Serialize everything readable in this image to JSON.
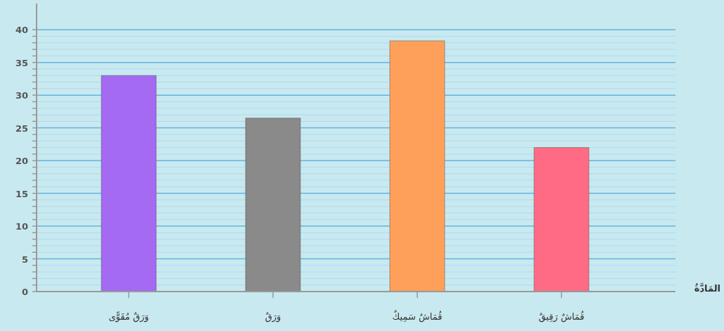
{
  "chart_data": {
    "type": "bar",
    "xlabel": "المَادَّةُ",
    "categories": [
      "وَرَقٌ مُقَوًّى",
      "وَرَقٌ",
      "قُمَاشٌ سَمِيكٌ",
      "قُمَاشٌ رَقِيقٌ"
    ],
    "values": [
      33,
      26.5,
      38.3,
      22
    ],
    "colors": [
      "#a46af2",
      "#8a8a8a",
      "#ffa05a",
      "#ff6b84"
    ],
    "ylim": [
      0,
      44
    ],
    "yticks": [
      0,
      {
        "value": 1,
        "label": null
      },
      {
        "value": 2,
        "label": null
      },
      {
        "value": 3,
        "label": null
      },
      {
        "value": 4,
        "label": null
      },
      5,
      {
        "value": 6,
        "label": null
      },
      {
        "value": 7,
        "label": null
      },
      {
        "value": 8,
        "label": null
      },
      {
        "value": 9,
        "label": null
      },
      10,
      {
        "value": 11,
        "label": null
      },
      {
        "value": 12,
        "label": null
      },
      {
        "value": 13,
        "label": null
      },
      {
        "value": 14,
        "label": null
      },
      15,
      {
        "value": 16,
        "label": null
      },
      {
        "value": 17,
        "label": null
      },
      {
        "value": 18,
        "label": null
      },
      {
        "value": 19,
        "label": null
      },
      20,
      {
        "value": 21,
        "label": null
      },
      {
        "value": 22,
        "label": null
      },
      {
        "value": 23,
        "label": null
      },
      {
        "value": 24,
        "label": null
      },
      25,
      {
        "value": 26,
        "label": null
      },
      {
        "value": 27,
        "label": null
      },
      {
        "value": 28,
        "label": null
      },
      {
        "value": 29,
        "label": null
      },
      30,
      {
        "value": 31,
        "label": null
      },
      {
        "value": 32,
        "label": null
      },
      {
        "value": 33,
        "label": null
      },
      {
        "value": 34,
        "label": null
      },
      35,
      {
        "value": 36,
        "label": null
      },
      {
        "value": 37,
        "label": null
      },
      {
        "value": 38,
        "label": null
      },
      {
        "value": 39,
        "label": null
      },
      40
    ],
    "grid": "y"
  }
}
